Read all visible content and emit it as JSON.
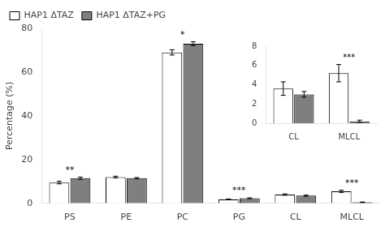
{
  "chart_data": [
    {
      "type": "bar",
      "categories": [
        "PS",
        "PE",
        "PC",
        "PG",
        "CL",
        "MLCL"
      ],
      "series": [
        {
          "name": "HAP1 ΔTAZ",
          "color": "#ffffff",
          "values": [
            9.5,
            12.0,
            69.0,
            1.8,
            4.0,
            5.5
          ],
          "errors": [
            0.6,
            0.4,
            1.2,
            0.2,
            0.3,
            0.5
          ]
        },
        {
          "name": "HAP1 ΔTAZ+PG",
          "color": "#7f7f7f",
          "values": [
            11.5,
            11.5,
            73.0,
            2.3,
            3.5,
            0.5
          ],
          "errors": [
            0.5,
            0.3,
            0.9,
            0.2,
            0.25,
            0.12
          ]
        }
      ],
      "y_label": "Percentage (%)",
      "ylim": [
        0,
        80
      ],
      "yticks": [
        0,
        20,
        40,
        60,
        80
      ],
      "grid": false,
      "legend": "upper left",
      "annotations": [
        {
          "category": "PS",
          "text": "**"
        },
        {
          "category": "PC",
          "text": "*"
        },
        {
          "category": "PG",
          "text": "***"
        },
        {
          "category": "MLCL",
          "text": "***"
        }
      ]
    },
    {
      "type": "bar",
      "categories": [
        "CL",
        "MLCL"
      ],
      "series": [
        {
          "color": "#ffffff",
          "values": [
            3.6,
            5.2
          ],
          "errors": [
            0.7,
            0.9
          ]
        },
        {
          "color": "#7f7f7f",
          "values": [
            3.0,
            0.2
          ],
          "errors": [
            0.3,
            0.12
          ]
        }
      ],
      "ylim": [
        0,
        8
      ],
      "yticks": [
        0,
        2,
        4,
        6,
        8
      ],
      "grid": false,
      "annotations": [
        {
          "category": "MLCL",
          "text": "***"
        }
      ]
    }
  ]
}
